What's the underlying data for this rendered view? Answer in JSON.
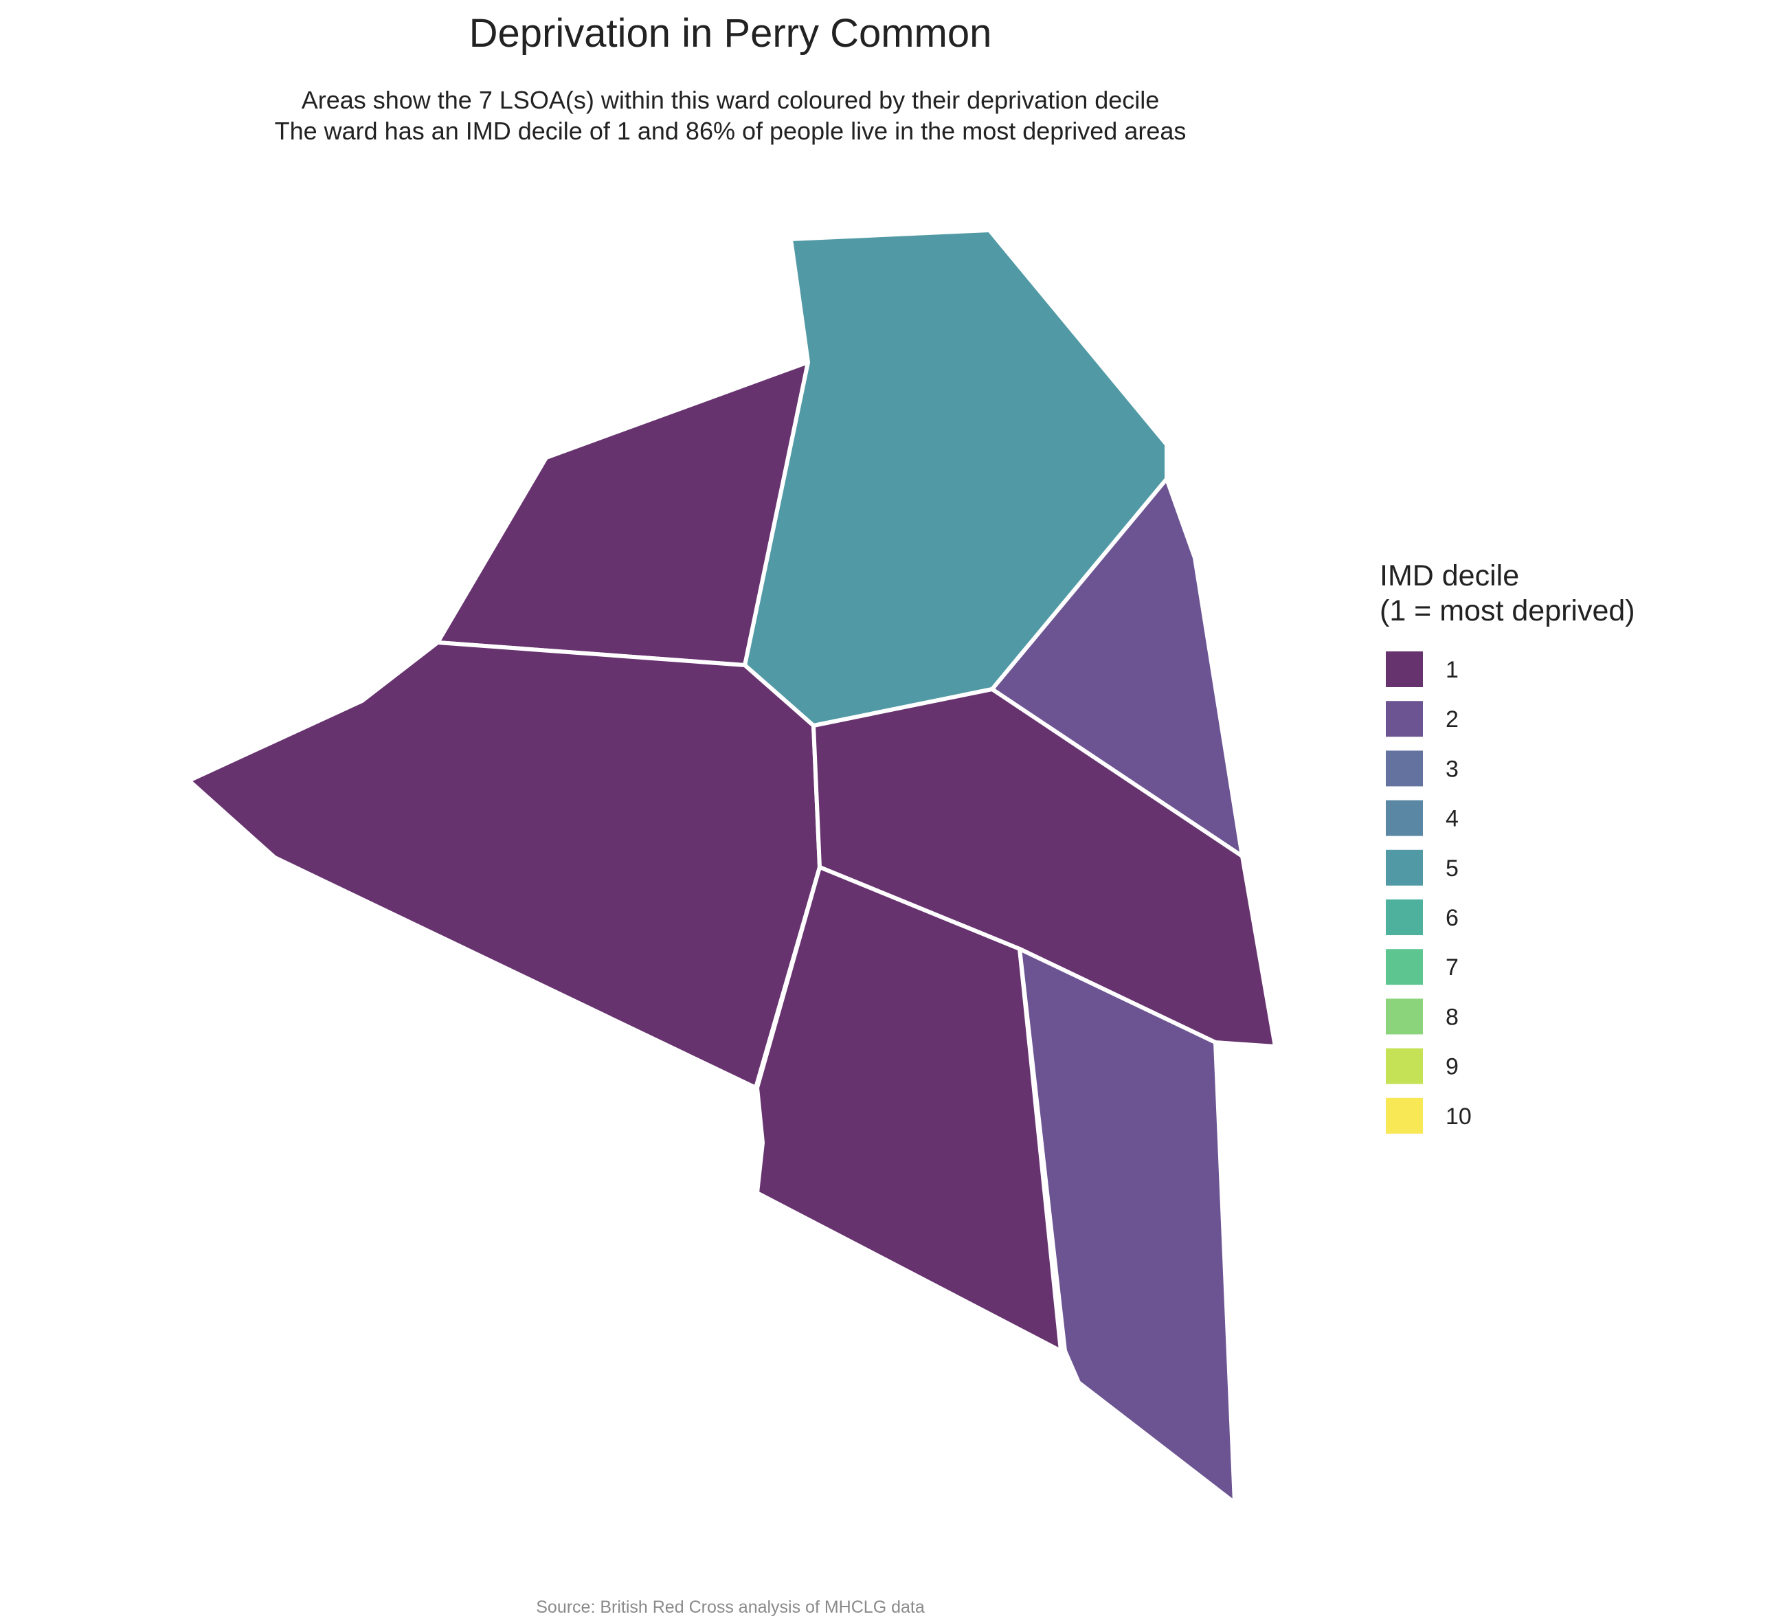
{
  "title": "Deprivation in Perry Common",
  "subtitle_line1": "Areas show the 7 LSOA(s) within this ward coloured by their deprivation decile",
  "subtitle_line2": "The ward has an IMD decile of 1 and 86% of people live in the most deprived areas",
  "legend": {
    "title_line1": "IMD decile",
    "title_line2": "(1 = most deprived)",
    "items": [
      {
        "label": "1",
        "color": "#67336F"
      },
      {
        "label": "2",
        "color": "#6C5492"
      },
      {
        "label": "3",
        "color": "#63729F"
      },
      {
        "label": "4",
        "color": "#5987A4"
      },
      {
        "label": "5",
        "color": "#519AA5"
      },
      {
        "label": "6",
        "color": "#4EB19D"
      },
      {
        "label": "7",
        "color": "#5DC690"
      },
      {
        "label": "8",
        "color": "#8BD47C"
      },
      {
        "label": "9",
        "color": "#C5E257"
      },
      {
        "label": "10",
        "color": "#F8E855"
      }
    ]
  },
  "caption": "Source: British Red Cross analysis of MHCLG data",
  "chart_data": {
    "type": "choropleth",
    "ward": "Perry Common",
    "lsoa_count": 7,
    "ward_imd_decile": 1,
    "pct_people_most_deprived": 86,
    "areas": [
      {
        "name": "lsoa-north-east",
        "decile": 5
      },
      {
        "name": "lsoa-north-west",
        "decile": 1
      },
      {
        "name": "lsoa-west",
        "decile": 1
      },
      {
        "name": "lsoa-east",
        "decile": 2
      },
      {
        "name": "lsoa-centre-east",
        "decile": 1
      },
      {
        "name": "lsoa-south-centre",
        "decile": 1
      },
      {
        "name": "lsoa-south-east",
        "decile": 2
      }
    ]
  }
}
